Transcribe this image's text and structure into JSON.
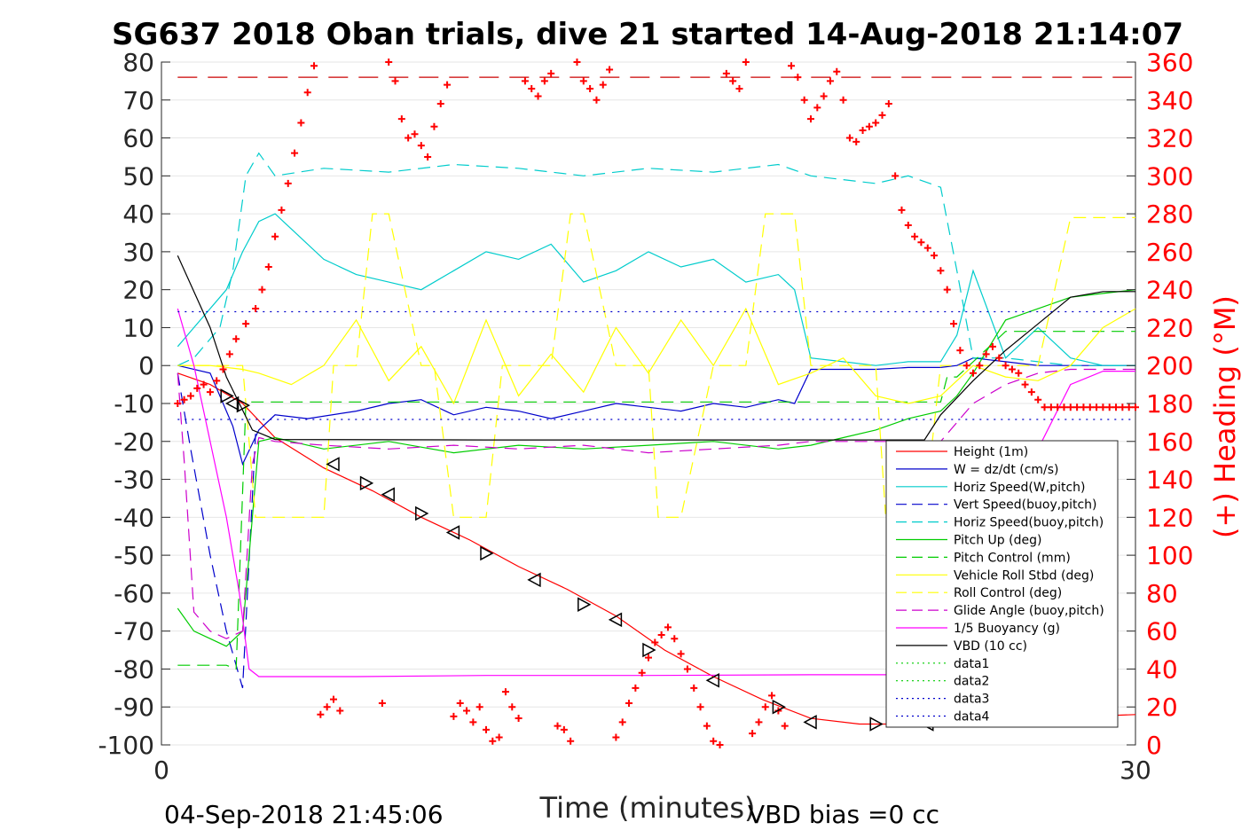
{
  "chart_data": {
    "type": "line",
    "title": "SG637 2018 Oban trials, dive 21 started 14-Aug-2018 21:14:07",
    "xlabel": "Time (minutes)",
    "ylabel": "",
    "y2label": "(+) Heading (°M)",
    "xlim": [
      0,
      30
    ],
    "ylim": [
      -100,
      80
    ],
    "y2lim": [
      0,
      360
    ],
    "xticks": [
      "0",
      "30"
    ],
    "yticks": [
      "80",
      "70",
      "60",
      "50",
      "40",
      "30",
      "20",
      "10",
      "0",
      "-10",
      "-20",
      "-30",
      "-40",
      "-50",
      "-60",
      "-70",
      "-80",
      "-90",
      "-100"
    ],
    "y2ticks": [
      "360",
      "340",
      "320",
      "300",
      "280",
      "260",
      "240",
      "220",
      "200",
      "180",
      "160",
      "140",
      "120",
      "100",
      "80",
      "60",
      "40",
      "20",
      "0"
    ],
    "grid": true,
    "legend_position": "bottom-right",
    "footer_left": "04-Sep-2018 21:45:06",
    "footer_right": "VBD bias =0 cc",
    "legend": [
      {
        "label": "Height (1m)",
        "color": "#ff0000",
        "style": "solid"
      },
      {
        "label": "W = dz/dt (cm/s)",
        "color": "#0000cc",
        "style": "solid"
      },
      {
        "label": "Horiz Speed(W,pitch)",
        "color": "#00cccc",
        "style": "solid"
      },
      {
        "label": "Vert Speed(buoy,pitch)",
        "color": "#0000cc",
        "style": "dashed"
      },
      {
        "label": "Horiz Speed(buoy,pitch)",
        "color": "#00cccc",
        "style": "dashed"
      },
      {
        "label": "Pitch Up (deg)",
        "color": "#00cc00",
        "style": "solid"
      },
      {
        "label": "Pitch Control (mm)",
        "color": "#00cc00",
        "style": "dashed"
      },
      {
        "label": "Vehicle Roll Stbd (deg)",
        "color": "#ffff00",
        "style": "solid"
      },
      {
        "label": "Roll Control (deg)",
        "color": "#ffff00",
        "style": "dashed"
      },
      {
        "label": "Glide Angle (buoy,pitch)",
        "color": "#cc00cc",
        "style": "dashed"
      },
      {
        "label": "1/5 Buoyancy (g)",
        "color": "#ff00ff",
        "style": "solid"
      },
      {
        "label": "VBD (10 cc)",
        "color": "#000000",
        "style": "solid"
      },
      {
        "label": "data1",
        "color": "#00cc00",
        "style": "dotted"
      },
      {
        "label": "data2",
        "color": "#00cc00",
        "style": "dotted"
      },
      {
        "label": "data3",
        "color": "#0000cc",
        "style": "dotted"
      },
      {
        "label": "data4",
        "color": "#0000cc",
        "style": "dotted"
      }
    ],
    "series": [
      {
        "name": "Height (1m)",
        "color": "#ff0000",
        "dash": "",
        "x": [
          0.5,
          1.5,
          2.5,
          3.5,
          5,
          6.5,
          8,
          9.5,
          11,
          12.5,
          14,
          15.5,
          17,
          18.5,
          20,
          21.5,
          23.5,
          26,
          28.5,
          30
        ],
        "y": [
          -2,
          -5,
          -10,
          -19,
          -27,
          -33,
          -40,
          -46,
          -53,
          -59,
          -66,
          -75,
          -82,
          -88,
          -93,
          -94.5,
          -94.5,
          -93,
          -92.5,
          -92
        ]
      },
      {
        "name": "W = dz/dt (cm/s)",
        "color": "#0000cc",
        "dash": "",
        "x": [
          0.5,
          1.5,
          2.2,
          2.5,
          3,
          3.5,
          4.5,
          6,
          7,
          8,
          9,
          10,
          11,
          12,
          13,
          14,
          15,
          16,
          17,
          18,
          19,
          19.5,
          20,
          21,
          22,
          23,
          24,
          24.5,
          25,
          26,
          27,
          28,
          29,
          30
        ],
        "y": [
          0,
          -2,
          -16,
          -26,
          -17,
          -13,
          -14,
          -12,
          -10,
          -9,
          -13,
          -11,
          -12,
          -14,
          -12,
          -10,
          -11,
          -12,
          -10,
          -11,
          -9,
          -10,
          -1,
          -1,
          -1,
          -0.5,
          -0.5,
          0,
          2,
          1,
          0,
          0,
          0,
          0
        ]
      },
      {
        "name": "Horiz Speed(W,pitch)",
        "color": "#00cccc",
        "dash": "",
        "x": [
          0.5,
          1,
          2,
          2.5,
          3,
          3.5,
          4,
          5,
          6,
          7,
          8,
          9,
          10,
          11,
          12,
          13,
          14,
          15,
          16,
          17,
          18,
          19,
          19.5,
          20,
          21,
          22,
          23,
          24,
          24.5,
          25,
          26,
          27,
          28,
          29,
          30
        ],
        "y": [
          5,
          10,
          20,
          30,
          38,
          40,
          36,
          28,
          24,
          22,
          20,
          25,
          30,
          28,
          32,
          22,
          25,
          30,
          26,
          28,
          22,
          24,
          20,
          2,
          1,
          0,
          1,
          1,
          8,
          25,
          2,
          10,
          2,
          0,
          0
        ]
      },
      {
        "name": "Vert Speed(buoy,pitch)",
        "color": "#0000cc",
        "dash": "14,8",
        "x": [
          0.5,
          0.9,
          1.5,
          2,
          2.5,
          2.9
        ],
        "y": [
          -2,
          -22,
          -50,
          -70,
          -85,
          -18
        ]
      },
      {
        "name": "Horiz Speed(buoy,pitch)",
        "color": "#00cccc",
        "dash": "14,8",
        "x": [
          0.5,
          1,
          1.8,
          2.2,
          2.6,
          3,
          3.5,
          5,
          7,
          9,
          11,
          13,
          15,
          17,
          19,
          20,
          21,
          22,
          23,
          24,
          24.5,
          25,
          26,
          27,
          28,
          29,
          30
        ],
        "y": [
          0,
          2,
          10,
          25,
          50,
          56,
          50,
          52,
          51,
          53,
          52,
          50,
          52,
          51,
          53,
          50,
          49,
          48,
          50,
          47,
          25,
          2,
          2,
          1,
          0,
          0,
          0
        ]
      },
      {
        "name": "Pitch Up (deg)",
        "color": "#00cc00",
        "dash": "",
        "x": [
          0.5,
          1,
          1.5,
          2,
          2.5,
          3,
          3.5,
          5,
          7,
          9,
          11,
          13,
          15,
          17,
          19,
          20,
          21,
          22,
          23,
          24,
          24.5,
          25,
          26,
          27,
          28,
          29,
          30
        ],
        "y": [
          -64,
          -70,
          -72,
          -74,
          -70,
          -20,
          -19,
          -22,
          -20,
          -23,
          -21,
          -22,
          -21,
          -20,
          -22,
          -21,
          -19,
          -17,
          -14,
          -12,
          -8,
          -2,
          12,
          15,
          18,
          19,
          20
        ]
      },
      {
        "name": "Pitch Control (mm)",
        "color": "#00cc00",
        "dash": "14,8",
        "x": [
          0.5,
          2,
          2.3,
          2.6,
          4,
          24,
          24.2,
          24.5,
          26,
          28,
          30
        ],
        "y": [
          -79,
          -79,
          -80,
          -9.6,
          -9.6,
          -9.6,
          -3,
          -3,
          9,
          9,
          9
        ]
      },
      {
        "name": "Vehicle Roll Stbd (deg)",
        "color": "#ffff00",
        "dash": "",
        "x": [
          0.5,
          1.5,
          2.5,
          3,
          4,
          5,
          6,
          7,
          8,
          9,
          10,
          11,
          12,
          13,
          14,
          15,
          16,
          17,
          18,
          19,
          20,
          21,
          22,
          23,
          24,
          25,
          26,
          27,
          28,
          29,
          30
        ],
        "y": [
          0,
          0,
          -1,
          -2,
          -5,
          0,
          12,
          -4,
          5,
          -10,
          12,
          -8,
          3,
          -7,
          10,
          -2,
          12,
          0,
          15,
          -5,
          -2,
          2,
          -8,
          -10,
          -8,
          0,
          -3,
          -4,
          0,
          10,
          15
        ]
      },
      {
        "name": "Roll Control (deg)",
        "color": "#ffff00",
        "dash": "14,8",
        "x": [
          0.5,
          2.5,
          2.9,
          3.3,
          4.5,
          5,
          5.3,
          6,
          6.5,
          7,
          8,
          8.4,
          9,
          10,
          10.5,
          11,
          12,
          12.6,
          13,
          14,
          15,
          15.3,
          16,
          17,
          18,
          18.6,
          19,
          19.5,
          20,
          20.5,
          21,
          22,
          22.3,
          23,
          23.5,
          24,
          25,
          27,
          28,
          28.5,
          30
        ],
        "y": [
          0,
          0,
          -40,
          -40,
          -40,
          -40,
          0,
          0,
          40,
          40,
          0,
          0,
          -40,
          -40,
          0,
          0,
          0,
          40,
          40,
          0,
          0,
          -40,
          -40,
          0,
          0,
          40,
          40,
          40,
          0,
          0,
          0,
          0,
          -39,
          -39,
          -39,
          0,
          0,
          0,
          39,
          39,
          39
        ]
      },
      {
        "name": "Glide Angle (buoy,pitch)",
        "color": "#cc00cc",
        "dash": "14,8",
        "x": [
          0.5,
          0.7,
          1,
          1.5,
          2,
          2.5,
          2.8,
          3,
          3.5,
          5,
          7,
          9,
          11,
          13,
          15,
          17,
          19,
          20,
          21,
          22,
          23,
          24,
          25,
          26,
          27,
          28,
          29,
          30
        ],
        "y": [
          -2,
          -25,
          -65,
          -70,
          -72,
          -70,
          -26,
          -19,
          -20,
          -21,
          -22,
          -21,
          -22,
          -21,
          -23,
          -22,
          -21,
          -20,
          -20,
          -20,
          -20,
          -20,
          -10,
          -5,
          -2,
          -1,
          -1,
          -1
        ]
      },
      {
        "name": "1/5 Buoyancy (g)",
        "color": "#ff00ff",
        "dash": "",
        "x": [
          0.5,
          1,
          1.5,
          2,
          2.4,
          2.7,
          3,
          3.5,
          6,
          10,
          15,
          20,
          23.5,
          24,
          25,
          26,
          27,
          28,
          29,
          30
        ],
        "y": [
          15,
          0,
          -20,
          -40,
          -60,
          -80,
          -82,
          -82,
          -82,
          -81.7,
          -81.7,
          -81.5,
          -81.5,
          -75,
          -58,
          -40,
          -22,
          -5,
          -1.5,
          -1.5
        ]
      },
      {
        "name": "VBD (10 cc)",
        "color": "#000000",
        "dash": "",
        "x": [
          0.5,
          1.5,
          2,
          2.4,
          2.8,
          3.5,
          10,
          15,
          20,
          23.5,
          24,
          25,
          26,
          27,
          28,
          29,
          30
        ],
        "y": [
          29,
          10,
          -3,
          -10,
          -17,
          -19.5,
          -19.6,
          -19.6,
          -19.6,
          -19.6,
          -13,
          -4,
          4,
          11,
          18,
          19.5,
          19.5
        ]
      },
      {
        "name": "data3",
        "color": "#0000cc",
        "dash": "2,6",
        "x": [
          0.5,
          30
        ],
        "y": [
          14.2,
          14.2
        ]
      },
      {
        "name": "data4",
        "color": "#0000cc",
        "dash": "2,6",
        "x": [
          0.5,
          30
        ],
        "y": [
          -14.2,
          -14.2
        ]
      },
      {
        "name": "",
        "color": "#cc0000",
        "dash": "22,12",
        "x": [
          0.5,
          30
        ],
        "y": [
          76,
          76
        ]
      }
    ],
    "heading_markers": {
      "color": "#ff0000",
      "x": [
        0.5,
        0.7,
        0.9,
        1.1,
        1.3,
        1.5,
        1.7,
        1.9,
        2.1,
        2.3,
        2.6,
        2.9,
        3.1,
        3.3,
        3.5,
        3.7,
        3.9,
        4.1,
        4.3,
        4.5,
        4.7,
        4.9,
        5.1,
        5.3,
        5.5,
        6.8,
        7,
        7.2,
        7.4,
        7.6,
        7.8,
        8,
        8.2,
        8.4,
        8.6,
        8.8,
        9,
        9.2,
        9.4,
        9.6,
        9.8,
        10,
        10.2,
        10.4,
        10.6,
        10.8,
        11,
        11.2,
        11.4,
        11.6,
        11.8,
        12,
        12.2,
        12.4,
        12.6,
        12.8,
        13,
        13.2,
        13.4,
        13.6,
        13.8,
        14,
        14.2,
        14.4,
        14.6,
        14.8,
        15,
        15.2,
        15.4,
        15.6,
        15.8,
        16,
        16.2,
        16.4,
        16.6,
        16.8,
        17,
        17.2,
        17.4,
        17.6,
        17.8,
        18,
        18.2,
        18.4,
        18.6,
        18.8,
        19,
        19.2,
        19.4,
        19.6,
        19.8,
        20,
        20.2,
        20.4,
        20.6,
        20.8,
        21,
        21.2,
        21.4,
        21.6,
        21.8,
        22,
        22.2,
        22.4,
        22.6,
        22.8,
        23,
        23.2,
        23.4,
        23.6,
        23.8,
        24,
        24.2,
        24.4,
        24.6,
        24.8,
        25,
        25.2,
        25.4,
        25.6,
        25.8,
        26,
        26.2,
        26.4,
        26.6,
        26.8,
        27,
        27.2,
        27.4,
        27.6,
        27.8,
        28,
        28.2,
        28.4,
        28.6,
        28.8,
        29,
        29.2,
        29.4,
        29.6,
        29.8,
        30
      ],
      "y": [
        180,
        182,
        184,
        188,
        190,
        186,
        192,
        198,
        206,
        214,
        222,
        230,
        240,
        252,
        268,
        282,
        296,
        312,
        328,
        344,
        358,
        16,
        20,
        24,
        18,
        22,
        360,
        350,
        330,
        320,
        322,
        316,
        310,
        326,
        338,
        348,
        15,
        22,
        18,
        12,
        20,
        8,
        2,
        4,
        28,
        20,
        14,
        350,
        346,
        342,
        350,
        354,
        10,
        8,
        2,
        360,
        350,
        346,
        340,
        348,
        356,
        4,
        12,
        22,
        30,
        38,
        46,
        54,
        58,
        62,
        56,
        48,
        40,
        30,
        20,
        10,
        2,
        0,
        354,
        350,
        346,
        360,
        6,
        12,
        20,
        26,
        18,
        10,
        358,
        352,
        340,
        330,
        336,
        342,
        350,
        355,
        340,
        320,
        318,
        324,
        326,
        328,
        332,
        338,
        300,
        282,
        274,
        268,
        265,
        262,
        258,
        250,
        240,
        222,
        208,
        200,
        196,
        200,
        206,
        210,
        204,
        200,
        198,
        196,
        190,
        186,
        182,
        178,
        178,
        178,
        178,
        178,
        178,
        178,
        178,
        178,
        178,
        178,
        178,
        178,
        178,
        178
      ]
    },
    "triangle_markers": {
      "x": [
        2,
        2.2,
        2.5,
        5.3,
        6.3,
        7,
        8,
        9,
        10,
        11.5,
        13,
        14,
        15,
        17,
        19,
        20,
        22,
        23.6,
        26,
        28.5
      ],
      "y": [
        -8,
        -10,
        -10.5,
        -26,
        -31,
        -34,
        -39,
        -44,
        -49.5,
        -56.5,
        -63,
        -67,
        -75,
        -83,
        -90,
        -94,
        -94.5,
        -94.5,
        -93,
        -92
      ]
    },
    "dotted_marker_line": {
      "x": [
        23.6,
        24.5,
        25.5,
        26.5,
        27.5,
        28.5
      ],
      "y": [
        -94.5,
        -93.8,
        -93.2,
        -92.8,
        -92.4,
        -92
      ]
    }
  }
}
